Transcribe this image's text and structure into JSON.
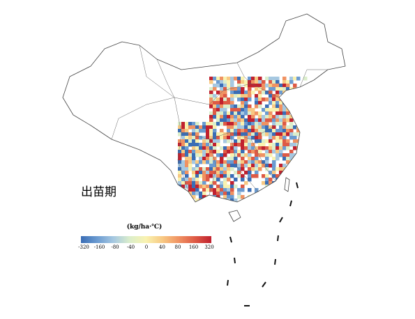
{
  "map": {
    "stage_label": "出苗期",
    "legend": {
      "title": "(kg/ha·℃)",
      "ticks": [
        -320,
        -160,
        -80,
        -40,
        0,
        40,
        80,
        160,
        320
      ],
      "colors": [
        "#3a6db5",
        "#6b9bd1",
        "#a6c8e1",
        "#dbeecb",
        "#f9f2b0",
        "#f8c983",
        "#f09262",
        "#de5a45",
        "#c0212f"
      ]
    }
  }
}
